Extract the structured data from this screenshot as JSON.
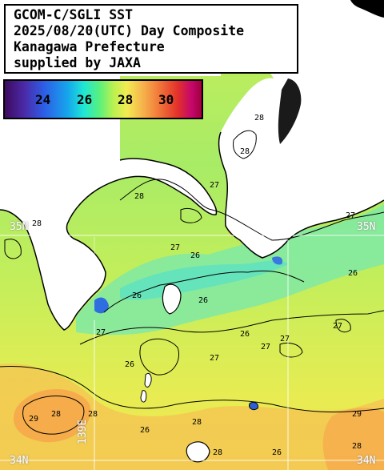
{
  "header": {
    "line1": "GCOM-C/SGLI SST",
    "line2": "2025/08/20(UTC) Day Composite",
    "line3": "Kanagawa Prefecture",
    "line4": "supplied by JAXA"
  },
  "colorbar": {
    "ticks": [
      "24",
      "26",
      "28",
      "30"
    ],
    "colors": [
      "#3d0a5e",
      "#4b2aa8",
      "#2d5ee6",
      "#16a6ec",
      "#1ee6d6",
      "#58f07e",
      "#b8f050",
      "#f2ec52",
      "#f6b44c",
      "#f27a3a",
      "#e2302a",
      "#c4066e",
      "#a2003a"
    ]
  },
  "grid_labels": {
    "lat_35_left": "35N",
    "lat_35_right": "35N",
    "lat_34_left": "34N",
    "lat_34_right": "34N",
    "lon_139": "139E"
  },
  "contour_labels": [
    "28",
    "28",
    "27",
    "27",
    "26",
    "28",
    "26",
    "27",
    "27",
    "26",
    "27",
    "28",
    "26",
    "27",
    "27",
    "27",
    "28",
    "26",
    "28",
    "29",
    "28",
    "26",
    "28",
    "29",
    "26",
    "26",
    "28"
  ],
  "colors": {
    "land": "#ffffff",
    "coastline": "#000000",
    "gridline": "#ffffff"
  }
}
